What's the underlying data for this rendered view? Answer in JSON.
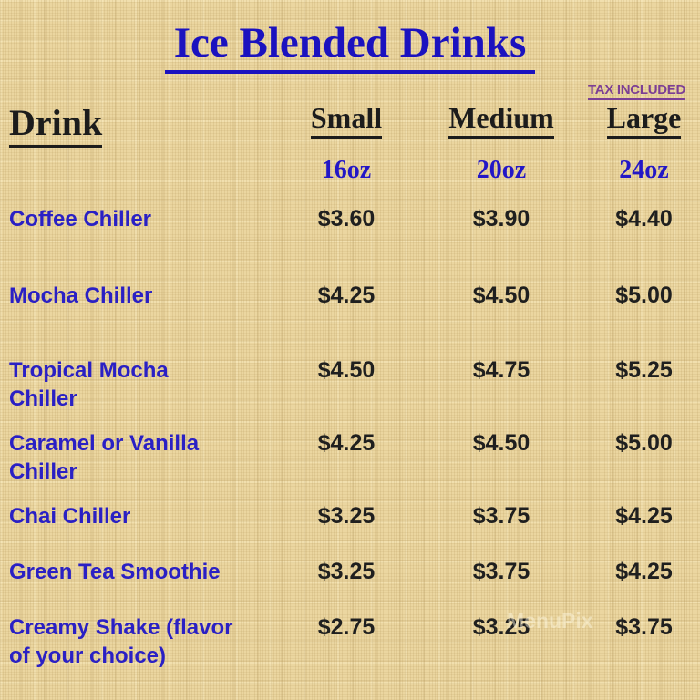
{
  "page": {
    "title": "Ice Blended Drinks",
    "tax_note": "TAX INCLUDED",
    "watermark": "MenuPix"
  },
  "table": {
    "headers": {
      "drink": "Drink",
      "small": "Small",
      "medium": "Medium",
      "large": "Large"
    },
    "sizes": {
      "small": "16oz",
      "medium": "20oz",
      "large": "24oz"
    },
    "rows": [
      {
        "name": "Coffee Chiller",
        "small": "$3.60",
        "medium": "$3.90",
        "large": "$4.40"
      },
      {
        "name": "Mocha Chiller",
        "small": "$4.25",
        "medium": "$4.50",
        "large": "$5.00"
      },
      {
        "name": "Tropical Mocha\nChiller",
        "small": "$4.50",
        "medium": "$4.75",
        "large": "$5.25"
      },
      {
        "name": "Caramel or Vanilla\nChiller",
        "small": "$4.25",
        "medium": "$4.50",
        "large": "$5.00"
      },
      {
        "name": "Chai Chiller",
        "small": "$3.25",
        "medium": "$3.75",
        "large": "$4.25"
      },
      {
        "name": "Green Tea Smoothie",
        "small": "$3.25",
        "medium": "$3.75",
        "large": "$4.25"
      },
      {
        "name": "Creamy Shake (flavor\nof your choice)",
        "small": "$2.75",
        "medium": "$3.25",
        "large": "$3.75"
      }
    ]
  },
  "colors": {
    "background": "#ebd6a0",
    "title_blue": "#1b12bf",
    "name_blue": "#2a20c4",
    "size_blue": "#2317c6",
    "tax_purple": "#7c3f95",
    "price_black": "#1f1f1f"
  }
}
